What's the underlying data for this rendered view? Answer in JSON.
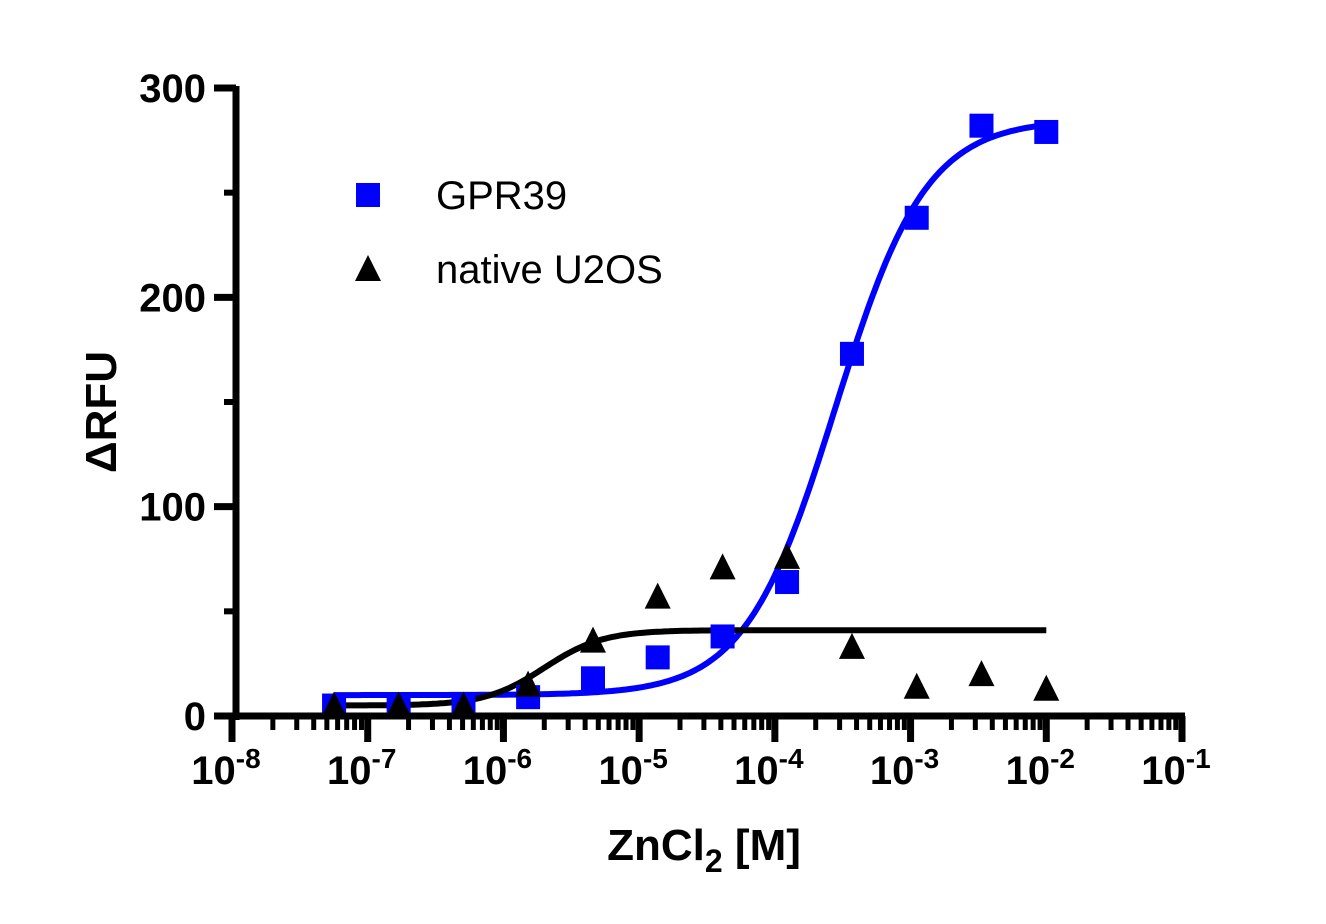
{
  "chart_data": {
    "type": "scatter",
    "title": "",
    "xlabel": "ZnCl",
    "xlabel_sub": "2",
    "xlabel_suffix": " [M]",
    "ylabel": "ΔRFU",
    "x_scale": "log",
    "xlim": [
      1e-08,
      0.1
    ],
    "ylim": [
      0,
      300
    ],
    "x_ticks": [
      {
        "base": "10",
        "exp": "-8"
      },
      {
        "base": "10",
        "exp": "-7"
      },
      {
        "base": "10",
        "exp": "-6"
      },
      {
        "base": "10",
        "exp": "-5"
      },
      {
        "base": "10",
        "exp": "-4"
      },
      {
        "base": "10",
        "exp": "-3"
      },
      {
        "base": "10",
        "exp": "-2"
      },
      {
        "base": "10",
        "exp": "-1"
      }
    ],
    "y_ticks": [
      "0",
      "100",
      "200",
      "300"
    ],
    "grid": false,
    "legend_position": "top-left",
    "x": [
      5.65e-08,
      1.69e-07,
      5.08e-07,
      1.52e-06,
      4.57e-06,
      1.37e-05,
      4.12e-05,
      0.000123,
      0.00037,
      0.00111,
      0.00333,
      0.01
    ],
    "series": [
      {
        "name": "GPR39",
        "marker": "square",
        "color": "#0000ff",
        "values": [
          5,
          5,
          5,
          9,
          18,
          28,
          38,
          64,
          173,
          238,
          282,
          279
        ],
        "fit": {
          "bottom": 10,
          "top": 285,
          "ec50": 0.00028,
          "hill": 1.3
        }
      },
      {
        "name": "native U2OS",
        "marker": "triangle",
        "color": "#000000",
        "values": [
          5,
          5,
          5,
          15,
          36,
          57,
          71,
          76,
          33,
          14,
          20,
          13
        ],
        "fit": {
          "bottom": 5,
          "top": 41,
          "ec50": 2e-06,
          "hill": 2
        }
      }
    ]
  }
}
